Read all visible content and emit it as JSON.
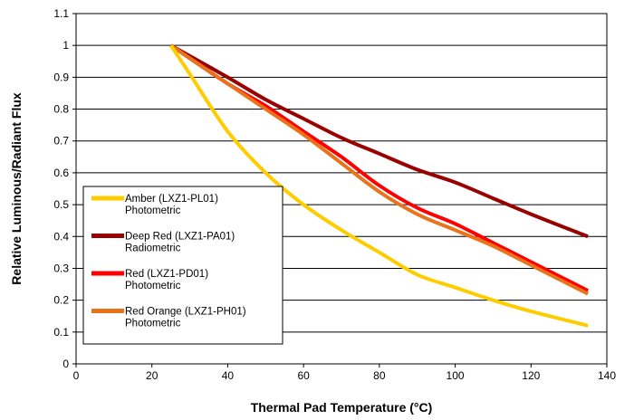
{
  "chart_data": {
    "type": "line",
    "title": "",
    "xlabel": "Thermal Pad Temperature (°C)",
    "ylabel": "Relative Luminous/Radiant Flux",
    "xlim": [
      0,
      140
    ],
    "ylim": [
      0,
      1.1
    ],
    "xticks": [
      "0",
      "20",
      "40",
      "60",
      "80",
      "100",
      "120",
      "140"
    ],
    "yticks": [
      "0",
      "0.1",
      "0.2",
      "0.3",
      "0.4",
      "0.5",
      "0.6",
      "0.7",
      "0.8",
      "0.9",
      "1",
      "1.1"
    ],
    "grid": "horizontal",
    "legend_position": "bottom-left",
    "series": [
      {
        "name": "Amber (LXZ1-PL01)",
        "name_line2": "Photometric",
        "color": "#FFCC00",
        "x": [
          25,
          30,
          40,
          50,
          60,
          70,
          80,
          90,
          100,
          110,
          120,
          135
        ],
        "y": [
          1.0,
          0.91,
          0.73,
          0.6,
          0.5,
          0.42,
          0.35,
          0.28,
          0.24,
          0.2,
          0.165,
          0.12
        ]
      },
      {
        "name": "Deep Red (LXZ1-PA01)",
        "name_line2": "Radiometric",
        "color": "#990000",
        "x": [
          25,
          40,
          50,
          60,
          70,
          80,
          90,
          100,
          110,
          120,
          135
        ],
        "y": [
          1.0,
          0.9,
          0.83,
          0.77,
          0.71,
          0.66,
          0.61,
          0.57,
          0.52,
          0.47,
          0.4
        ]
      },
      {
        "name": "Red (LXZ1-PD01)",
        "name_line2": "Photometric",
        "color": "#FF0000",
        "x": [
          25,
          40,
          50,
          60,
          70,
          80,
          90,
          100,
          110,
          120,
          135
        ],
        "y": [
          1.0,
          0.88,
          0.81,
          0.73,
          0.65,
          0.56,
          0.49,
          0.44,
          0.38,
          0.32,
          0.23
        ]
      },
      {
        "name": "Red Orange (LXZ1-PH01)",
        "name_line2": "Photometric",
        "color": "#E8731A",
        "x": [
          25,
          40,
          50,
          60,
          70,
          80,
          90,
          100,
          110,
          120,
          135
        ],
        "y": [
          1.0,
          0.88,
          0.8,
          0.72,
          0.63,
          0.54,
          0.47,
          0.42,
          0.37,
          0.31,
          0.22
        ]
      }
    ]
  }
}
